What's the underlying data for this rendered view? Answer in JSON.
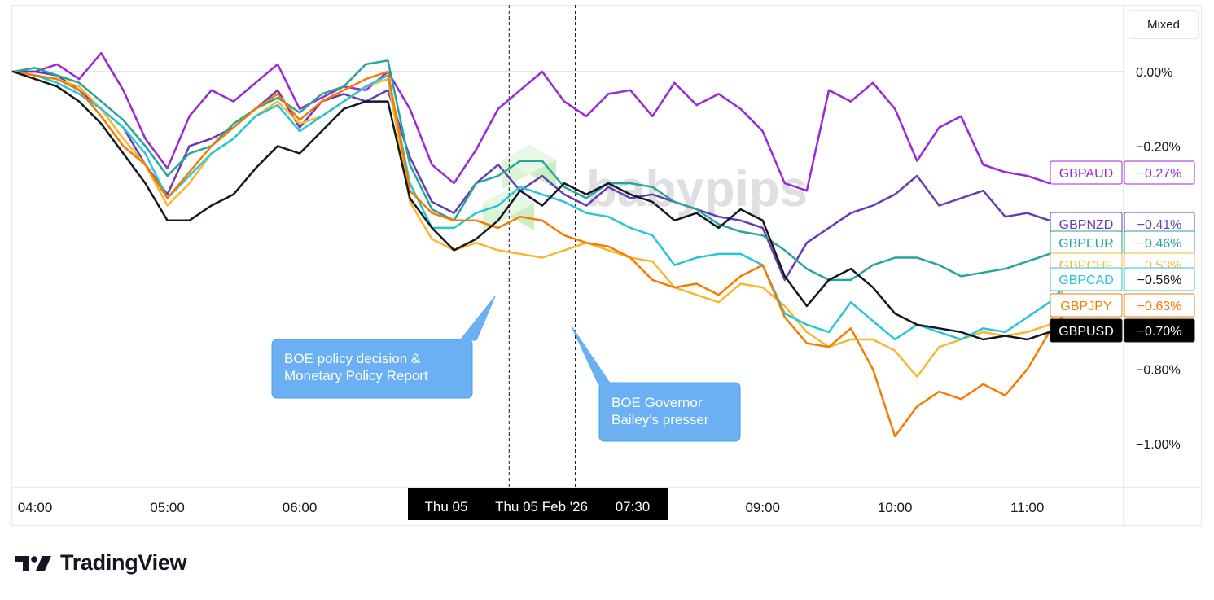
{
  "app": {
    "mode_label": "Mixed",
    "brand": "TradingView",
    "watermark_text": "babypips"
  },
  "chart_data": {
    "type": "line",
    "y_unit": "%",
    "ylim": [
      -1.12,
      0.18
    ],
    "yticks": [
      {
        "value": 0.0,
        "label": "0.00%"
      },
      {
        "value": -0.2,
        "label": "−0.20%"
      },
      {
        "value": -0.8,
        "label": "−0.80%"
      },
      {
        "value": -1.0,
        "label": "−1.00%"
      }
    ],
    "xticks": [
      "04:00",
      "05:00",
      "06:00",
      "09:00",
      "10:00",
      "11:00"
    ],
    "x_tick_positions": [
      1,
      7,
      13,
      34,
      40,
      46
    ],
    "crosshair_label": {
      "day": "Thu 05",
      "datetime": "Thu 05 Feb '26",
      "time": "07:30"
    },
    "event_markers": [
      22.5,
      25.5
    ],
    "annotations": [
      "BOE policy decision &\nMonetary Policy Report",
      "BOE Governor\nBailey's presser"
    ],
    "grid": false,
    "legend": "right-edge labels",
    "series": [
      {
        "name": "GBPAUD",
        "color": "#9c27d6",
        "last_label": "−0.27%",
        "values": [
          0.0,
          0.0,
          0.02,
          -0.02,
          0.05,
          -0.05,
          -0.18,
          -0.26,
          -0.12,
          -0.05,
          -0.08,
          -0.03,
          0.02,
          -0.1,
          -0.07,
          -0.04,
          -0.05,
          0.0,
          -0.1,
          -0.25,
          -0.3,
          -0.21,
          -0.1,
          -0.05,
          0.0,
          -0.08,
          -0.12,
          -0.06,
          -0.05,
          -0.12,
          -0.03,
          -0.09,
          -0.06,
          -0.1,
          -0.16,
          -0.3,
          -0.32,
          -0.05,
          -0.08,
          -0.03,
          -0.1,
          -0.24,
          -0.15,
          -0.12,
          -0.25,
          -0.27,
          -0.28,
          -0.3,
          -0.27
        ]
      },
      {
        "name": "GBPNZD",
        "color": "#673ab7",
        "last_label": "−0.41%",
        "values": [
          0.0,
          0.0,
          -0.01,
          -0.05,
          -0.1,
          -0.15,
          -0.25,
          -0.33,
          -0.2,
          -0.18,
          -0.15,
          -0.1,
          -0.05,
          -0.15,
          -0.08,
          -0.06,
          -0.08,
          -0.05,
          -0.23,
          -0.35,
          -0.38,
          -0.3,
          -0.25,
          -0.32,
          -0.28,
          -0.33,
          -0.36,
          -0.31,
          -0.34,
          -0.33,
          -0.35,
          -0.37,
          -0.39,
          -0.4,
          -0.42,
          -0.56,
          -0.46,
          -0.42,
          -0.38,
          -0.36,
          -0.33,
          -0.28,
          -0.36,
          -0.34,
          -0.32,
          -0.39,
          -0.38,
          -0.4,
          -0.41
        ]
      },
      {
        "name": "GBPEUR",
        "color": "#26a69a",
        "last_label": "−0.46%",
        "values": [
          0.0,
          0.01,
          -0.01,
          -0.03,
          -0.08,
          -0.13,
          -0.2,
          -0.28,
          -0.22,
          -0.2,
          -0.14,
          -0.1,
          -0.07,
          -0.11,
          -0.06,
          -0.04,
          0.02,
          0.03,
          -0.25,
          -0.37,
          -0.4,
          -0.3,
          -0.28,
          -0.24,
          -0.24,
          -0.31,
          -0.34,
          -0.3,
          -0.3,
          -0.31,
          -0.35,
          -0.37,
          -0.41,
          -0.43,
          -0.44,
          -0.48,
          -0.53,
          -0.56,
          -0.56,
          -0.52,
          -0.5,
          -0.5,
          -0.52,
          -0.55,
          -0.54,
          -0.53,
          -0.51,
          -0.49,
          -0.46
        ]
      },
      {
        "name": "GBPCHF",
        "color": "#f7b731",
        "last_label": "−0.53%",
        "values": [
          0.0,
          -0.01,
          -0.02,
          -0.04,
          -0.1,
          -0.18,
          -0.25,
          -0.36,
          -0.3,
          -0.22,
          -0.18,
          -0.12,
          -0.08,
          -0.14,
          -0.12,
          -0.08,
          -0.04,
          -0.02,
          -0.35,
          -0.45,
          -0.48,
          -0.46,
          -0.48,
          -0.49,
          -0.5,
          -0.48,
          -0.46,
          -0.48,
          -0.5,
          -0.51,
          -0.58,
          -0.6,
          -0.62,
          -0.57,
          -0.58,
          -0.63,
          -0.7,
          -0.74,
          -0.72,
          -0.72,
          -0.75,
          -0.82,
          -0.74,
          -0.72,
          -0.7,
          -0.71,
          -0.7,
          -0.68,
          -0.53
        ]
      },
      {
        "name": "GBPCAD",
        "color": "#26c6da",
        "last_label": "−0.56%",
        "values": [
          0.0,
          -0.01,
          -0.03,
          -0.06,
          -0.1,
          -0.15,
          -0.22,
          -0.34,
          -0.28,
          -0.22,
          -0.18,
          -0.12,
          -0.09,
          -0.16,
          -0.12,
          -0.08,
          -0.04,
          -0.01,
          -0.3,
          -0.42,
          -0.42,
          -0.38,
          -0.36,
          -0.31,
          -0.33,
          -0.35,
          -0.38,
          -0.39,
          -0.42,
          -0.44,
          -0.52,
          -0.5,
          -0.49,
          -0.49,
          -0.52,
          -0.65,
          -0.68,
          -0.7,
          -0.62,
          -0.67,
          -0.72,
          -0.68,
          -0.7,
          -0.72,
          -0.69,
          -0.7,
          -0.66,
          -0.62,
          -0.56
        ]
      },
      {
        "name": "GBPJPY",
        "color": "#f57c00",
        "last_label": "−0.63%",
        "values": [
          0.0,
          -0.01,
          -0.02,
          -0.05,
          -0.12,
          -0.2,
          -0.25,
          -0.34,
          -0.27,
          -0.2,
          -0.15,
          -0.1,
          -0.06,
          -0.13,
          -0.08,
          -0.05,
          -0.02,
          0.0,
          -0.32,
          -0.38,
          -0.4,
          -0.4,
          -0.42,
          -0.39,
          -0.4,
          -0.44,
          -0.46,
          -0.47,
          -0.5,
          -0.56,
          -0.58,
          -0.57,
          -0.6,
          -0.55,
          -0.52,
          -0.66,
          -0.73,
          -0.74,
          -0.69,
          -0.8,
          -0.98,
          -0.9,
          -0.86,
          -0.88,
          -0.84,
          -0.87,
          -0.8,
          -0.7,
          -0.63
        ]
      },
      {
        "name": "GBPUSD",
        "color": "#131722",
        "last_label": "−0.70%",
        "values": [
          0.0,
          -0.02,
          -0.04,
          -0.08,
          -0.14,
          -0.22,
          -0.3,
          -0.4,
          -0.4,
          -0.36,
          -0.33,
          -0.26,
          -0.2,
          -0.22,
          -0.16,
          -0.1,
          -0.08,
          -0.08,
          -0.34,
          -0.42,
          -0.48,
          -0.45,
          -0.4,
          -0.32,
          -0.36,
          -0.3,
          -0.33,
          -0.3,
          -0.33,
          -0.35,
          -0.4,
          -0.38,
          -0.42,
          -0.37,
          -0.4,
          -0.55,
          -0.63,
          -0.56,
          -0.53,
          -0.58,
          -0.65,
          -0.68,
          -0.69,
          -0.7,
          -0.72,
          -0.71,
          -0.72,
          -0.7,
          -0.7
        ]
      }
    ]
  }
}
